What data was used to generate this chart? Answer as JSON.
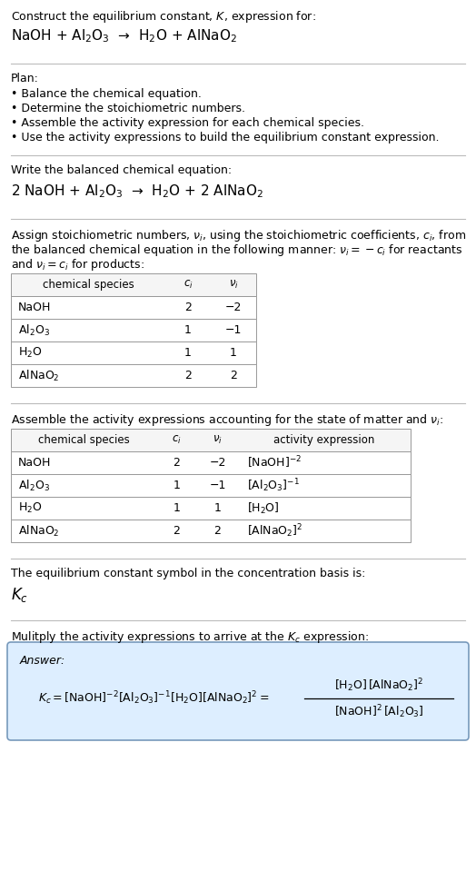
{
  "title_line1": "Construct the equilibrium constant, $K$, expression for:",
  "title_line2": "NaOH + Al$_2$O$_3$  →  H$_2$O + AlNaO$_2$",
  "plan_header": "Plan:",
  "plan_bullets": [
    "• Balance the chemical equation.",
    "• Determine the stoichiometric numbers.",
    "• Assemble the activity expression for each chemical species.",
    "• Use the activity expressions to build the equilibrium constant expression."
  ],
  "balanced_header": "Write the balanced chemical equation:",
  "balanced_eq": "2 NaOH + Al$_2$O$_3$  →  H$_2$O + 2 AlNaO$_2$",
  "stoich_intro_line1": "Assign stoichiometric numbers, $\\nu_i$, using the stoichiometric coefficients, $c_i$, from",
  "stoich_intro_line2": "the balanced chemical equation in the following manner: $\\nu_i = -c_i$ for reactants",
  "stoich_intro_line3": "and $\\nu_i = c_i$ for products:",
  "table1_headers": [
    "chemical species",
    "$c_i$",
    "$\\nu_i$"
  ],
  "table1_rows": [
    [
      "NaOH",
      "2",
      "−2"
    ],
    [
      "Al$_2$O$_3$",
      "1",
      "−1"
    ],
    [
      "H$_2$O",
      "1",
      "1"
    ],
    [
      "AlNaO$_2$",
      "2",
      "2"
    ]
  ],
  "activity_intro": "Assemble the activity expressions accounting for the state of matter and $\\nu_i$:",
  "table2_headers": [
    "chemical species",
    "$c_i$",
    "$\\nu_i$",
    "activity expression"
  ],
  "table2_rows": [
    [
      "NaOH",
      "2",
      "−2",
      "[NaOH]$^{-2}$"
    ],
    [
      "Al$_2$O$_3$",
      "1",
      "−1",
      "[Al$_2$O$_3$]$^{-1}$"
    ],
    [
      "H$_2$O",
      "1",
      "1",
      "[H$_2$O]"
    ],
    [
      "AlNaO$_2$",
      "2",
      "2",
      "[AlNaO$_2$]$^2$"
    ]
  ],
  "kc_intro": "The equilibrium constant symbol in the concentration basis is:",
  "kc_symbol": "$K_c$",
  "multiply_intro": "Mulitply the activity expressions to arrive at the $K_c$ expression:",
  "answer_box_color": "#ddeeff",
  "answer_border_color": "#7799bb",
  "bg_color": "#ffffff",
  "text_color": "#000000",
  "table_border_color": "#999999",
  "separator_color": "#bbbbbb",
  "font_size": 9.0,
  "title_font_size": 11.0,
  "table_font_size": 9.0
}
